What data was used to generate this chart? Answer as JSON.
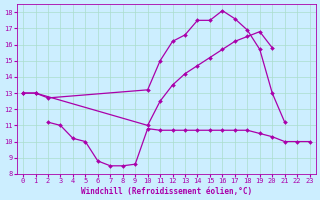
{
  "bg_color": "#cceeff",
  "grid_color": "#aaddcc",
  "line_color": "#aa00aa",
  "xlabel": "Windchill (Refroidissement éolien,°C)",
  "xlim": [
    -0.5,
    23.5
  ],
  "ylim": [
    8,
    18.5
  ],
  "xticks": [
    0,
    1,
    2,
    3,
    4,
    5,
    6,
    7,
    8,
    9,
    10,
    11,
    12,
    13,
    14,
    15,
    16,
    17,
    18,
    19,
    20,
    21,
    22,
    23
  ],
  "yticks": [
    8,
    9,
    10,
    11,
    12,
    13,
    14,
    15,
    16,
    17,
    18
  ],
  "lines": [
    {
      "x": [
        0,
        1,
        2,
        10,
        11,
        12,
        13,
        14,
        15,
        16,
        17,
        18,
        19,
        20,
        21
      ],
      "y": [
        13,
        13,
        12.7,
        13.2,
        15.0,
        16.2,
        16.6,
        17.5,
        17.5,
        18.1,
        17.6,
        16.9,
        15.7,
        13.0,
        11.2
      ]
    },
    {
      "x": [
        0,
        1,
        10,
        11,
        12,
        13,
        14,
        15,
        16,
        17,
        18,
        19,
        20
      ],
      "y": [
        13,
        13,
        11.0,
        12.5,
        13.5,
        14.2,
        14.7,
        15.2,
        15.7,
        16.2,
        16.5,
        16.8,
        15.8
      ]
    },
    {
      "x": [
        2,
        3,
        4,
        5,
        6,
        7,
        8,
        9,
        10,
        11,
        12,
        13,
        14,
        15,
        16,
        17,
        18,
        19,
        20,
        21,
        22,
        23
      ],
      "y": [
        11.2,
        11.0,
        10.2,
        10.0,
        8.8,
        8.5,
        8.5,
        8.6,
        10.8,
        10.7,
        10.7,
        10.7,
        10.7,
        10.7,
        10.7,
        10.7,
        10.7,
        10.5,
        10.3,
        10.0,
        10.0,
        10.0
      ]
    }
  ]
}
